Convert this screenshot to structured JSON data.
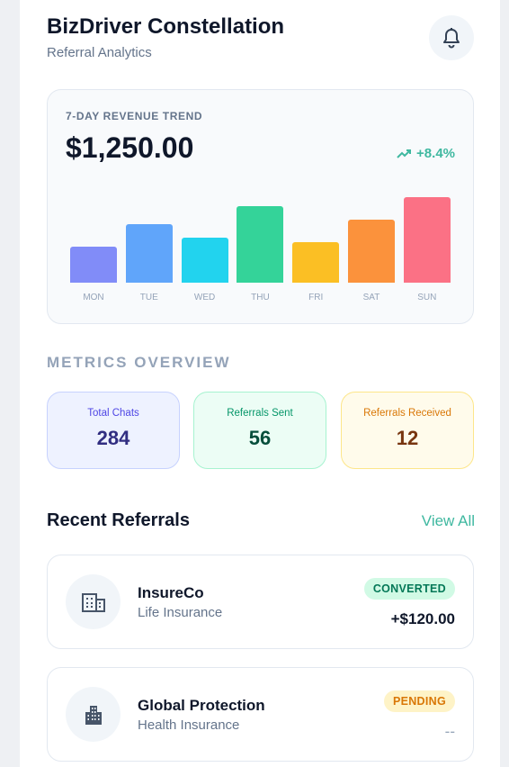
{
  "header": {
    "title": "BizDriver Constellation",
    "subtitle": "Referral Analytics"
  },
  "revenue": {
    "label": "7-DAY REVENUE TREND",
    "total": "$1,250.00",
    "change": "+8.4%",
    "chart_data": {
      "type": "bar",
      "categories": [
        "MON",
        "TUE",
        "WED",
        "THU",
        "FRI",
        "SAT",
        "SUN"
      ],
      "values": [
        40,
        65,
        50,
        85,
        45,
        70,
        95
      ],
      "colors": [
        "#818cf8",
        "#60a5fa",
        "#22d3ee",
        "#34d399",
        "#fbbf24",
        "#fb923c",
        "#fb7185"
      ]
    }
  },
  "metrics": {
    "title": "METRICS OVERVIEW",
    "items": [
      {
        "label": "Total Chats",
        "value": 284
      },
      {
        "label": "Referrals Sent",
        "value": 56
      },
      {
        "label": "Referrals Received",
        "value": 12
      }
    ]
  },
  "referrals": {
    "title": "Recent Referrals",
    "action": "View All",
    "items": [
      {
        "name": "InsureCo",
        "category": "Life Insurance",
        "status": "CONVERTED",
        "amount": "+$120.00"
      },
      {
        "name": "Global Protection",
        "category": "Health Insurance",
        "status": "PENDING",
        "amount": "--"
      }
    ]
  }
}
